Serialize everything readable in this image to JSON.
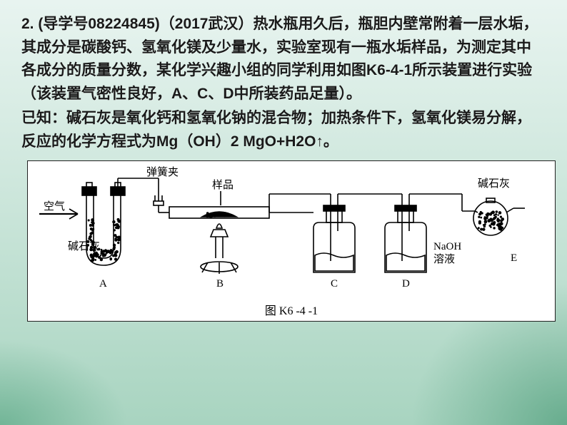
{
  "text": {
    "p1": "2. (导学号08224845)（2017武汉）热水瓶用久后，瓶胆内壁常附着一层水垢，其成分是碳酸钙、氢氧化镁及少量水，实验室现有一瓶水垢样品，为测定其中各成分的质量分数，某化学兴趣小组的同学利用如图K6-4-1所示装置进行实验（该装置气密性良好，A、C、D中所装药品足量）。",
    "p2": "已知：碱石灰是氧化钙和氢氧化钠的混合物；加热条件下，氢氧化镁易分解，反应的化学方程式为Mg（OH）2    MgO+H2O↑。"
  },
  "diagram": {
    "caption": "图 K6 -4 -1",
    "labels": {
      "air": "空气",
      "clamp": "弹簧夹",
      "sample": "样品",
      "sodalime_a": "碱石灰",
      "sodalime_e": "碱石灰",
      "naoh": "NaOH",
      "solution": "溶液",
      "A": "A",
      "B": "B",
      "C": "C",
      "D": "D",
      "E": "E"
    },
    "colors": {
      "stroke": "#000000",
      "fill_bg": "#ffffff",
      "granule": "#000000",
      "liquid": "#ffffff"
    },
    "stroke_width": 1.6,
    "font_family": "SimSun, serif",
    "label_fontsize": 15
  }
}
